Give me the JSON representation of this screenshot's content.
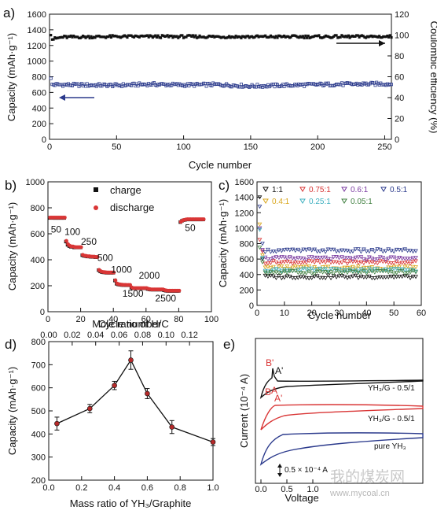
{
  "colors": {
    "black": "#111111",
    "navy": "#2b3a8c",
    "red": "#d93636",
    "green": "#3f7f3f",
    "yellow": "#d9a61c",
    "teal": "#3fb0c0",
    "purple": "#7a3aa0",
    "gray": "#555555"
  },
  "watermark": {
    "main": "我的煤炭网",
    "url": "www.mycoal.cn"
  },
  "chart_data": [
    {
      "panel": "a)",
      "type": "scatter",
      "xlabel": "Cycle number",
      "ylabel": "Capacity (mAh·g⁻¹)",
      "y2label": "Coulombic efficiency (%)",
      "xlim": [
        0,
        255
      ],
      "ylim": [
        0,
        1600
      ],
      "y2lim": [
        0,
        120
      ],
      "xticks": [
        0,
        50,
        100,
        150,
        200,
        250
      ],
      "yticks": [
        0,
        200,
        400,
        600,
        800,
        1000,
        1200,
        1400,
        1600
      ],
      "y2ticks": [
        0,
        20,
        40,
        60,
        80,
        100,
        120
      ],
      "series": [
        {
          "role": "capacity",
          "axis": "left",
          "points": [
            [
              1,
              770
            ],
            [
              2,
              700
            ],
            [
              20,
              695
            ],
            [
              50,
              690
            ],
            [
              75,
              705
            ],
            [
              100,
              695
            ],
            [
              125,
              700
            ],
            [
              150,
              680
            ],
            [
              175,
              690
            ],
            [
              200,
              700
            ],
            [
              225,
              705
            ],
            [
              250,
              710
            ],
            [
              255,
              705
            ]
          ]
        },
        {
          "role": "coulombic-efficiency",
          "axis": "right",
          "points": [
            [
              1,
              101
            ],
            [
              2,
              96
            ],
            [
              10,
              98
            ],
            [
              50,
              98.5
            ],
            [
              100,
              98.5
            ],
            [
              150,
              98.3
            ],
            [
              200,
              98.4
            ],
            [
              250,
              98.5
            ],
            [
              255,
              98.5
            ]
          ]
        }
      ]
    },
    {
      "panel": "b)",
      "type": "scatter",
      "xlabel": "Cycle number",
      "ylabel": "Capacity (mAh·g⁻¹)",
      "xlim": [
        0,
        100
      ],
      "ylim": [
        0,
        1000
      ],
      "xticks": [
        0,
        20,
        40,
        60,
        80,
        100
      ],
      "yticks": [
        0,
        200,
        400,
        600,
        800,
        1000
      ],
      "legend": [
        "charge",
        "discharge"
      ],
      "series": [
        {
          "name": "charge",
          "points": [
            [
              1,
              722
            ],
            [
              2,
              723
            ],
            [
              3,
              722
            ],
            [
              4,
              722
            ],
            [
              5,
              722
            ],
            [
              6,
              722
            ],
            [
              7,
              722
            ],
            [
              8,
              722
            ],
            [
              9,
              722
            ],
            [
              10,
              722
            ],
            [
              11,
              540
            ],
            [
              12,
              515
            ],
            [
              13,
              505
            ],
            [
              14,
              500
            ],
            [
              15,
              500
            ],
            [
              16,
              495
            ],
            [
              17,
              495
            ],
            [
              18,
              495
            ],
            [
              19,
              495
            ],
            [
              20,
              495
            ],
            [
              21,
              435
            ],
            [
              22,
              430
            ],
            [
              23,
              428
            ],
            [
              24,
              425
            ],
            [
              25,
              425
            ],
            [
              26,
              423
            ],
            [
              27,
              422
            ],
            [
              28,
              422
            ],
            [
              29,
              420
            ],
            [
              30,
              420
            ],
            [
              31,
              320
            ],
            [
              32,
              310
            ],
            [
              33,
              305
            ],
            [
              34,
              303
            ],
            [
              35,
              302
            ],
            [
              36,
              300
            ],
            [
              37,
              300
            ],
            [
              38,
              300
            ],
            [
              39,
              300
            ],
            [
              40,
              300
            ],
            [
              41,
              240
            ],
            [
              42,
              215
            ],
            [
              43,
              210
            ],
            [
              44,
              208
            ],
            [
              45,
              206
            ],
            [
              46,
              205
            ],
            [
              47,
              205
            ],
            [
              48,
              204
            ],
            [
              49,
              204
            ],
            [
              50,
              204
            ],
            [
              51,
              185
            ],
            [
              52,
              180
            ],
            [
              53,
              180
            ],
            [
              54,
              180
            ],
            [
              55,
              180
            ],
            [
              56,
              180
            ],
            [
              57,
              180
            ],
            [
              58,
              180
            ],
            [
              59,
              180
            ],
            [
              60,
              180
            ],
            [
              61,
              175
            ],
            [
              62,
              172
            ],
            [
              63,
              170
            ],
            [
              64,
              170
            ],
            [
              65,
              170
            ],
            [
              66,
              170
            ],
            [
              67,
              170
            ],
            [
              68,
              170
            ],
            [
              69,
              170
            ],
            [
              70,
              170
            ],
            [
              71,
              165
            ],
            [
              72,
              162
            ],
            [
              73,
              160
            ],
            [
              74,
              160
            ],
            [
              75,
              160
            ],
            [
              76,
              160
            ],
            [
              77,
              160
            ],
            [
              78,
              160
            ],
            [
              79,
              160
            ],
            [
              80,
              160
            ],
            [
              81,
              690
            ],
            [
              82,
              700
            ],
            [
              83,
              705
            ],
            [
              84,
              708
            ],
            [
              85,
              710
            ],
            [
              86,
              710
            ],
            [
              87,
              710
            ],
            [
              88,
              710
            ],
            [
              89,
              710
            ],
            [
              90,
              710
            ],
            [
              91,
              710
            ],
            [
              92,
              710
            ],
            [
              93,
              710
            ],
            [
              94,
              710
            ],
            [
              95,
              710
            ]
          ]
        },
        {
          "name": "discharge",
          "points": [
            [
              1,
              725
            ],
            [
              2,
              725
            ],
            [
              3,
              725
            ],
            [
              4,
              725
            ],
            [
              5,
              725
            ],
            [
              6,
              725
            ],
            [
              7,
              725
            ],
            [
              8,
              725
            ],
            [
              9,
              725
            ],
            [
              10,
              725
            ],
            [
              11,
              545
            ],
            [
              12,
              520
            ],
            [
              13,
              508
            ],
            [
              14,
              503
            ],
            [
              15,
              502
            ],
            [
              16,
              498
            ],
            [
              17,
              497
            ],
            [
              18,
              497
            ],
            [
              19,
              497
            ],
            [
              20,
              497
            ],
            [
              21,
              438
            ],
            [
              22,
              432
            ],
            [
              23,
              430
            ],
            [
              24,
              427
            ],
            [
              25,
              427
            ],
            [
              26,
              425
            ],
            [
              27,
              424
            ],
            [
              28,
              424
            ],
            [
              29,
              422
            ],
            [
              30,
              422
            ],
            [
              31,
              322
            ],
            [
              32,
              312
            ],
            [
              33,
              307
            ],
            [
              34,
              305
            ],
            [
              35,
              304
            ],
            [
              36,
              302
            ],
            [
              37,
              302
            ],
            [
              38,
              302
            ],
            [
              39,
              302
            ],
            [
              40,
              302
            ],
            [
              41,
              242
            ],
            [
              42,
              217
            ],
            [
              43,
              212
            ],
            [
              44,
              210
            ],
            [
              45,
              208
            ],
            [
              46,
              207
            ],
            [
              47,
              207
            ],
            [
              48,
              206
            ],
            [
              49,
              206
            ],
            [
              50,
              206
            ],
            [
              51,
              187
            ],
            [
              52,
              182
            ],
            [
              53,
              182
            ],
            [
              54,
              182
            ],
            [
              55,
              182
            ],
            [
              56,
              182
            ],
            [
              57,
              182
            ],
            [
              58,
              182
            ],
            [
              59,
              182
            ],
            [
              60,
              182
            ],
            [
              61,
              177
            ],
            [
              62,
              174
            ],
            [
              63,
              172
            ],
            [
              64,
              172
            ],
            [
              65,
              172
            ],
            [
              66,
              172
            ],
            [
              67,
              172
            ],
            [
              68,
              172
            ],
            [
              69,
              172
            ],
            [
              70,
              172
            ],
            [
              71,
              167
            ],
            [
              72,
              164
            ],
            [
              73,
              162
            ],
            [
              74,
              162
            ],
            [
              75,
              162
            ],
            [
              76,
              162
            ],
            [
              77,
              162
            ],
            [
              78,
              162
            ],
            [
              79,
              162
            ],
            [
              80,
              162
            ],
            [
              81,
              692
            ],
            [
              82,
              702
            ],
            [
              83,
              707
            ],
            [
              84,
              710
            ],
            [
              85,
              712
            ],
            [
              86,
              712
            ],
            [
              87,
              712
            ],
            [
              88,
              712
            ],
            [
              89,
              712
            ],
            [
              90,
              712
            ],
            [
              91,
              712
            ],
            [
              92,
              712
            ],
            [
              93,
              712
            ],
            [
              94,
              712
            ],
            [
              95,
              712
            ]
          ]
        }
      ],
      "annotations": [
        {
          "text": "50",
          "x": 5,
          "y": 610
        },
        {
          "text": "100",
          "x": 15,
          "y": 590
        },
        {
          "text": "250",
          "x": 25,
          "y": 515
        },
        {
          "text": "500",
          "x": 35,
          "y": 390
        },
        {
          "text": "1000",
          "x": 45,
          "y": 300
        },
        {
          "text": "1500",
          "x": 52,
          "y": 115
        },
        {
          "text": "2000",
          "x": 62,
          "y": 255
        },
        {
          "text": "2500",
          "x": 72,
          "y": 80
        },
        {
          "text": "50",
          "x": 87,
          "y": 620
        }
      ]
    },
    {
      "panel": "c)",
      "type": "scatter",
      "xlabel": "Cycle number",
      "ylabel": "Capacity (mAh·g⁻¹)",
      "xlim": [
        0,
        60
      ],
      "ylim": [
        0,
        1600
      ],
      "xticks": [
        0,
        10,
        20,
        30,
        40,
        50,
        60
      ],
      "yticks": [
        0,
        200,
        400,
        600,
        800,
        1000,
        1200,
        1400,
        1600
      ],
      "legend": [
        "1:1",
        "0.75:1",
        "0.6:1",
        "0.5:1",
        "0.4:1",
        "0.25:1",
        "0.05:1"
      ],
      "series": [
        {
          "name": "1:1",
          "first": 1400,
          "second": 600,
          "plateau": 370
        },
        {
          "name": "0.75:1",
          "first": 850,
          "second": 700,
          "plateau": 560
        },
        {
          "name": "0.6:1",
          "first": 1000,
          "second": 720,
          "plateau": 610
        },
        {
          "name": "0.5:1",
          "first": 1280,
          "second": 800,
          "plateau": 710
        },
        {
          "name": "0.4:1",
          "first": 1050,
          "second": 650,
          "plateau": 490
        },
        {
          "name": "0.25:1",
          "first": 980,
          "second": 620,
          "plateau": 460
        },
        {
          "name": "0.05:1",
          "first": 750,
          "second": 560,
          "plateau": 430
        }
      ]
    },
    {
      "panel": "d)",
      "type": "line",
      "xlabel": "Mass ratio of YH₃/Graphite",
      "x2label": "Mole ratio of  H/C",
      "ylabel": "Capacity (mAh·g⁻¹)",
      "xlim": [
        0,
        1.0
      ],
      "x2lim": [
        0,
        0.14
      ],
      "ylim": [
        200,
        800
      ],
      "xticks": [
        "0.0",
        "0.2",
        "0.4",
        "0.6",
        "0.8",
        "1.0"
      ],
      "x2ticks": [
        "0.00",
        "0.02",
        "0.04",
        "0.06",
        "0.08",
        "0.10",
        "0.12"
      ],
      "yticks": [
        200,
        300,
        400,
        500,
        600,
        700,
        800
      ],
      "x": [
        0.05,
        0.25,
        0.4,
        0.5,
        0.6,
        0.75,
        1.0
      ],
      "y": [
        445,
        510,
        610,
        720,
        575,
        430,
        365
      ],
      "yerr": [
        28,
        18,
        18,
        40,
        22,
        28,
        15
      ]
    },
    {
      "panel": "e)",
      "type": "line",
      "xlabel": "Voltage",
      "ylabel": "Current (10⁻⁴ A)",
      "xticks": [
        "0.0",
        "0.5",
        "1.0"
      ],
      "series": [
        {
          "name": "YH₃/G - 0.5/1",
          "color": "black"
        },
        {
          "name": "YH₃/G - 0.5/1",
          "color": "red"
        },
        {
          "name": "pure YH₃",
          "color": "navy"
        }
      ],
      "peak_labels": [
        "B'",
        "A'",
        "B",
        "A",
        "A'"
      ],
      "scale_label": "0.5 × 10⁻⁴ A"
    }
  ]
}
